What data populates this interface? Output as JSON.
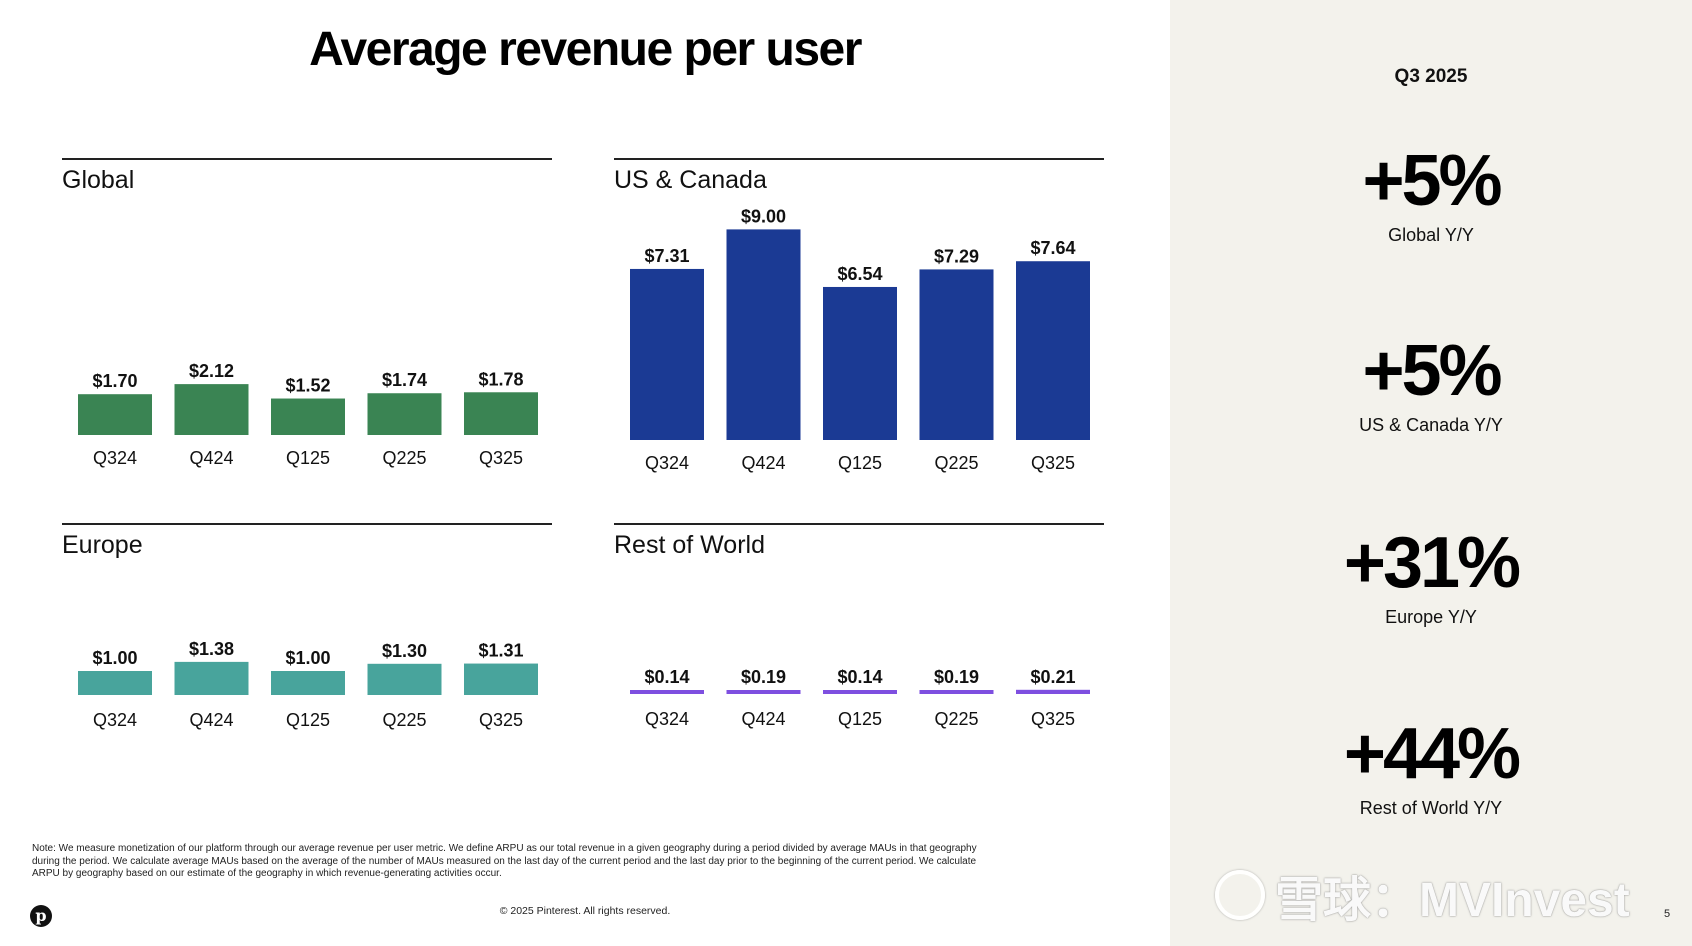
{
  "title": "Average revenue per user",
  "chart_data": [
    {
      "type": "bar",
      "title": "Global",
      "categories": [
        "Q324",
        "Q424",
        "Q125",
        "Q225",
        "Q325"
      ],
      "values": [
        1.7,
        2.12,
        1.52,
        1.74,
        1.78
      ],
      "labels": [
        "$1.70",
        "$2.12",
        "$1.52",
        "$1.74",
        "$1.78"
      ],
      "color": "#3a8453"
    },
    {
      "type": "bar",
      "title": "US & Canada",
      "categories": [
        "Q324",
        "Q424",
        "Q125",
        "Q225",
        "Q325"
      ],
      "values": [
        7.31,
        9.0,
        6.54,
        7.29,
        7.64
      ],
      "labels": [
        "$7.31",
        "$9.00",
        "$6.54",
        "$7.29",
        "$7.64"
      ],
      "color": "#1b3a94"
    },
    {
      "type": "bar",
      "title": "Europe",
      "categories": [
        "Q324",
        "Q424",
        "Q125",
        "Q225",
        "Q325"
      ],
      "values": [
        1.0,
        1.38,
        1.0,
        1.3,
        1.31
      ],
      "labels": [
        "$1.00",
        "$1.38",
        "$1.00",
        "$1.30",
        "$1.31"
      ],
      "color": "#48a49c"
    },
    {
      "type": "bar",
      "title": "Rest of World",
      "categories": [
        "Q324",
        "Q424",
        "Q125",
        "Q225",
        "Q325"
      ],
      "values": [
        0.14,
        0.19,
        0.14,
        0.19,
        0.21
      ],
      "labels": [
        "$0.14",
        "$0.19",
        "$0.14",
        "$0.19",
        "$0.21"
      ],
      "color": "#7e4fe0"
    }
  ],
  "sidebar": {
    "period": "Q3 2025",
    "metrics": [
      {
        "value": "+5%",
        "caption": "Global Y/Y"
      },
      {
        "value": "+5%",
        "caption": "US & Canada Y/Y"
      },
      {
        "value": "+31%",
        "caption": "Europe Y/Y"
      },
      {
        "value": "+44%",
        "caption": "Rest of World Y/Y"
      }
    ]
  },
  "footer": {
    "note": "Note: We measure monetization of our platform through our average revenue per user metric. We define ARPU as our total revenue in a given geography during a period divided by average MAUs in that geography during the period. We calculate average MAUs based on the average of the number of MAUs measured on the last day of the current period and the last day prior to the beginning of the current period. We calculate ARPU by geography based on our estimate of the geography in which revenue-generating activities occur.",
    "copyright": "© 2025 Pinterest. All rights reserved.",
    "page": "5",
    "logo_letter": "p"
  },
  "watermark": {
    "text": "雪球：MVInvest"
  }
}
